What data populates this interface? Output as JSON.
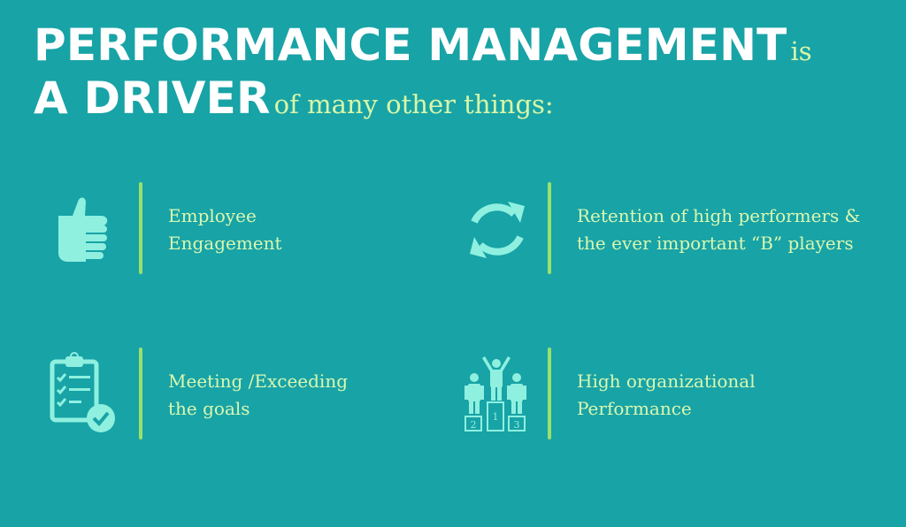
{
  "title": {
    "line1_bold": "PERFORMANCE MANAGEMENT",
    "line1_light": "is",
    "line2_bold": "A DRIVER",
    "line2_light": "of many other things:"
  },
  "items": [
    {
      "icon": "thumbs-up-icon",
      "lines": [
        "Employee",
        "Engagement"
      ]
    },
    {
      "icon": "refresh-icon",
      "lines": [
        "Retention of high performers &",
        "the ever important “B” players"
      ]
    },
    {
      "icon": "checklist-icon",
      "lines": [
        "Meeting /Exceeding",
        "the goals"
      ]
    },
    {
      "icon": "podium-icon",
      "lines": [
        "High organizational",
        "Performance"
      ],
      "podium_labels": [
        "2",
        "1",
        "3"
      ]
    }
  ],
  "colors": {
    "background": "#18a3a6",
    "title_bold": "#ffffff",
    "title_light": "#d8f7a8",
    "divider": "#9be06a",
    "icon": "#8ff0e0",
    "item_text": "#daf8b0"
  }
}
